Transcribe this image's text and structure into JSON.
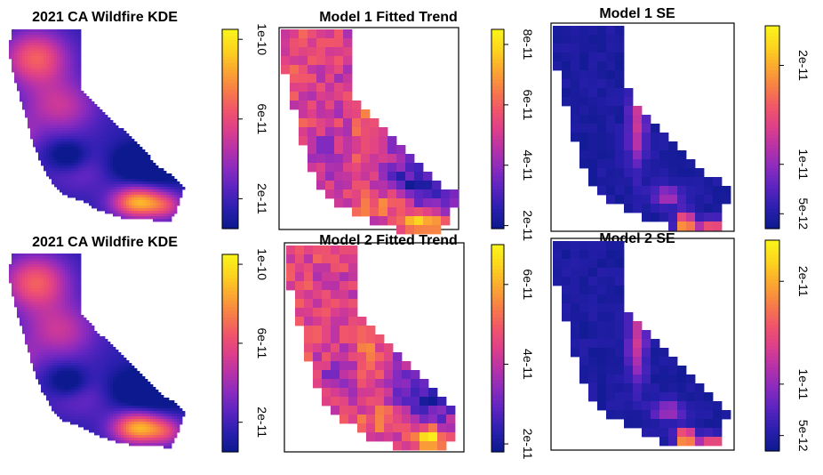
{
  "figure": {
    "panels": [
      {
        "id": "kde-1",
        "title": "2021 CA Wildfire KDE",
        "type": "kde",
        "colorbar": {
          "ticks": [
            "2e-11",
            "6e-11",
            "1e-10"
          ],
          "tick_values": [
            2e-11,
            6e-11,
            1e-10
          ],
          "range": [
            5e-12,
            1.05e-10
          ]
        }
      },
      {
        "id": "model1-trend",
        "title": "Model 1 Fitted Trend",
        "type": "grid",
        "colorbar": {
          "ticks": [
            "2e-11",
            "4e-11",
            "6e-11",
            "8e-11"
          ],
          "tick_values": [
            2e-11,
            4e-11,
            6e-11,
            8e-11
          ],
          "range": [
            1.9e-11,
            8.5e-11
          ]
        }
      },
      {
        "id": "model1-se",
        "title": "Model 1 SE",
        "type": "grid-se",
        "colorbar": {
          "ticks": [
            "5e-12",
            "1e-11",
            "2e-11"
          ],
          "tick_values": [
            5e-12,
            1e-11,
            2e-11
          ],
          "range": [
            3.5e-12,
            2.4e-11
          ]
        }
      },
      {
        "id": "kde-2",
        "title": "2021 CA Wildfire KDE",
        "type": "kde",
        "colorbar": {
          "ticks": [
            "2e-11",
            "6e-11",
            "1e-10"
          ],
          "tick_values": [
            2e-11,
            6e-11,
            1e-10
          ],
          "range": [
            5e-12,
            1.05e-10
          ]
        }
      },
      {
        "id": "model2-trend",
        "title": "Model 2 Fitted Trend",
        "type": "grid",
        "colorbar": {
          "ticks": [
            "2e-11",
            "4e-11",
            "6e-11"
          ],
          "tick_values": [
            2e-11,
            4e-11,
            6e-11
          ],
          "range": [
            1.8e-11,
            7e-11
          ]
        }
      },
      {
        "id": "model2-se",
        "title": "Model 2 SE",
        "type": "grid-se",
        "colorbar": {
          "ticks": [
            "5e-12",
            "1e-11",
            "2e-11"
          ],
          "tick_values": [
            5e-12,
            1e-11,
            2e-11
          ],
          "range": [
            3.5e-12,
            2.4e-11
          ]
        }
      }
    ],
    "palette": [
      "#0d1a8f",
      "#2c1fb0",
      "#5a24c0",
      "#8a2bbf",
      "#b732a8",
      "#dd3f8a",
      "#f0556a",
      "#f77d48",
      "#fba631",
      "#fdd21f",
      "#f9f21a"
    ]
  }
}
